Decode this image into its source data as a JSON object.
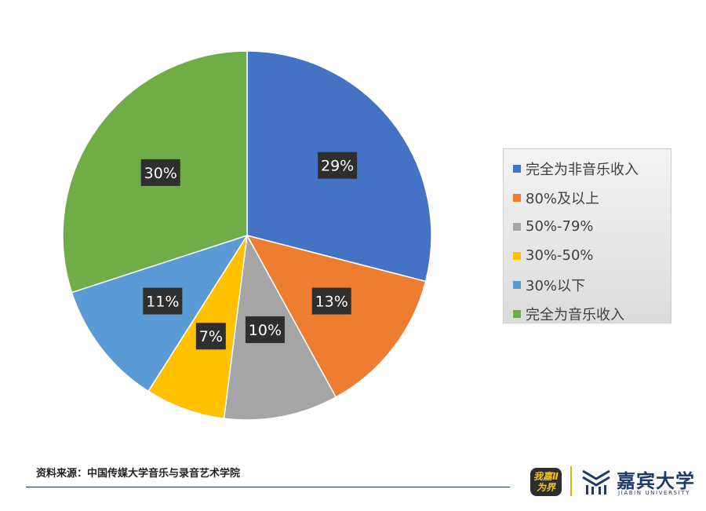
{
  "chart_data": {
    "type": "pie",
    "labels": [
      "完全为非音乐收入",
      "80%及以上",
      "50%-79%",
      "30%-50%",
      "30%以下",
      "完全为音乐收入"
    ],
    "values": [
      29,
      13,
      10,
      7,
      11,
      30
    ],
    "data_labels": [
      "29%",
      "13%",
      "10%",
      "7%",
      "11%",
      "30%"
    ],
    "colors": [
      "#4472c4",
      "#ed7d31",
      "#a5a5a5",
      "#ffc000",
      "#5b9bd5",
      "#70ad47"
    ],
    "legend_position": "right"
  },
  "footer": {
    "source": "资料来源：中国传媒大学音乐与录音艺术学院",
    "logo1_text": "我嘉Ⅱ为界",
    "logo2_name": "嘉宾大学",
    "logo2_sub": "JIABIN UNIVERSITY"
  }
}
